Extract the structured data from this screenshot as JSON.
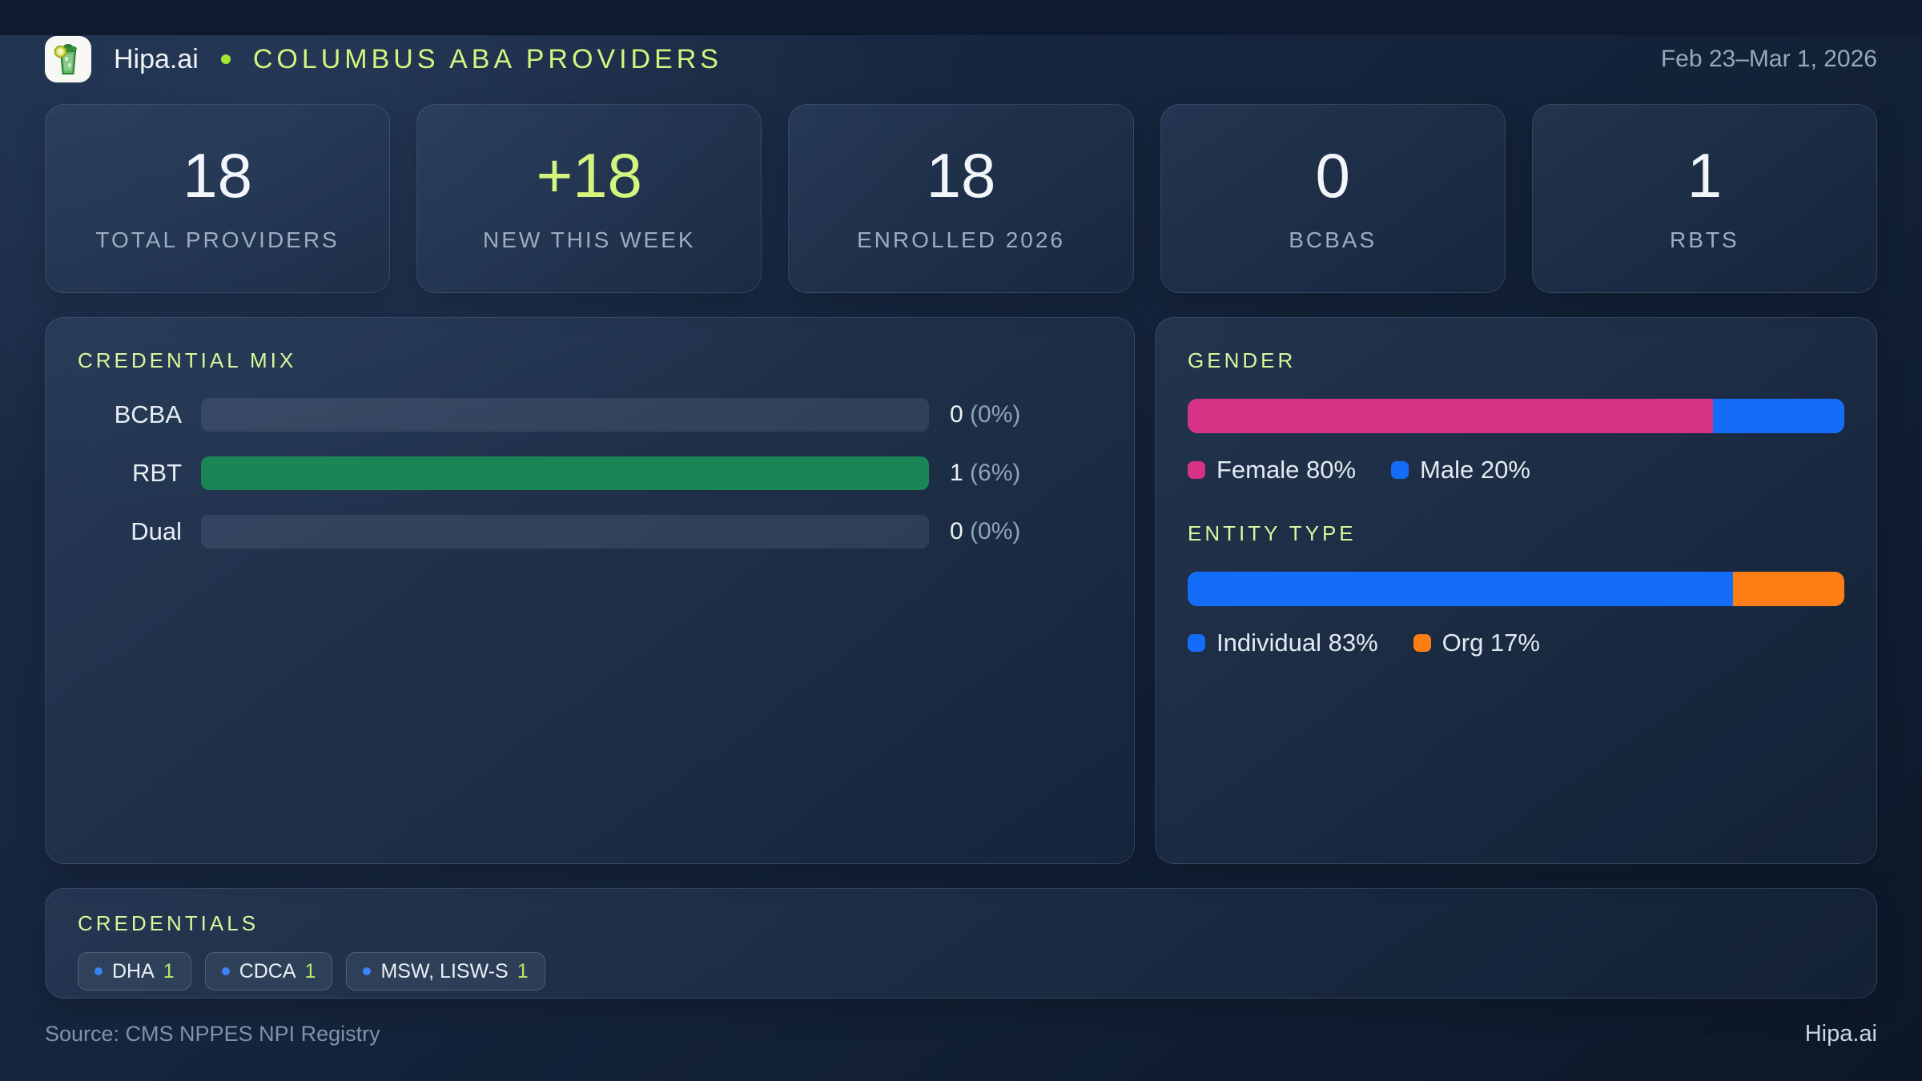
{
  "header": {
    "brand": "Hipa.ai",
    "title": "COLUMBUS ABA PROVIDERS",
    "date_range": "Feb 23–Mar 1, 2026"
  },
  "stats": [
    {
      "value": "18",
      "label": "TOTAL PROVIDERS"
    },
    {
      "value": "+18",
      "label": "NEW THIS WEEK"
    },
    {
      "value": "18",
      "label": "ENROLLED 2026"
    },
    {
      "value": "0",
      "label": "BCBAS"
    },
    {
      "value": "1",
      "label": "RBTS"
    }
  ],
  "credential_mix": {
    "title": "CREDENTIAL MIX",
    "rows": [
      {
        "label": "BCBA",
        "value": "0",
        "pct_label": "(0%)",
        "fill_pct": 0,
        "color": "#1a8555"
      },
      {
        "label": "RBT",
        "value": "1",
        "pct_label": "(6%)",
        "fill_pct": 100,
        "color": "#1a8555"
      },
      {
        "label": "Dual",
        "value": "0",
        "pct_label": "(0%)",
        "fill_pct": 0,
        "color": "#1a8555"
      }
    ]
  },
  "gender": {
    "title": "GENDER",
    "segments": [
      {
        "name": "Female",
        "legend": "Female 80%",
        "pct": 80,
        "color": "#d63384"
      },
      {
        "name": "Male",
        "legend": "Male 20%",
        "pct": 20,
        "color": "#146df9"
      }
    ]
  },
  "entity_type": {
    "title": "ENTITY TYPE",
    "segments": [
      {
        "name": "Individual",
        "legend": "Individual 83%",
        "pct": 83,
        "color": "#146df9"
      },
      {
        "name": "Org",
        "legend": "Org 17%",
        "pct": 17,
        "color": "#fd7e14"
      }
    ]
  },
  "credentials": {
    "title": "CREDENTIALS",
    "chips": [
      {
        "label": "DHA",
        "count": "1"
      },
      {
        "label": "CDCA",
        "count": "1"
      },
      {
        "label": "MSW, LISW-S",
        "count": "1"
      }
    ]
  },
  "footer": {
    "source": "Source: CMS NPPES NPI Registry",
    "brand": "Hipa.ai"
  },
  "colors": {
    "accent_lime": "#d4f47e",
    "green": "#1a8555",
    "pink": "#d63384",
    "blue": "#146df9",
    "orange": "#fd7e14",
    "chip_dot_blue": "#3b82f6"
  },
  "chart_data": [
    {
      "type": "bar",
      "title": "CREDENTIAL MIX",
      "categories": [
        "BCBA",
        "RBT",
        "Dual"
      ],
      "values": [
        0,
        1,
        0
      ],
      "value_labels": [
        "0 (0%)",
        "1 (6%)",
        "0 (0%)"
      ],
      "xlabel": "",
      "ylabel": "",
      "legend_position": "none"
    },
    {
      "type": "bar",
      "title": "GENDER",
      "stacked": true,
      "categories": [
        "Gender"
      ],
      "series": [
        {
          "name": "Female",
          "values": [
            80
          ]
        },
        {
          "name": "Male",
          "values": [
            20
          ]
        }
      ],
      "unit": "percent",
      "legend_position": "bottom"
    },
    {
      "type": "bar",
      "title": "ENTITY TYPE",
      "stacked": true,
      "categories": [
        "Entity"
      ],
      "series": [
        {
          "name": "Individual",
          "values": [
            83
          ]
        },
        {
          "name": "Org",
          "values": [
            17
          ]
        }
      ],
      "unit": "percent",
      "legend_position": "bottom"
    },
    {
      "type": "table",
      "title": "CREDENTIALS",
      "categories": [
        "DHA",
        "CDCA",
        "MSW, LISW-S"
      ],
      "values": [
        1,
        1,
        1
      ]
    }
  ]
}
